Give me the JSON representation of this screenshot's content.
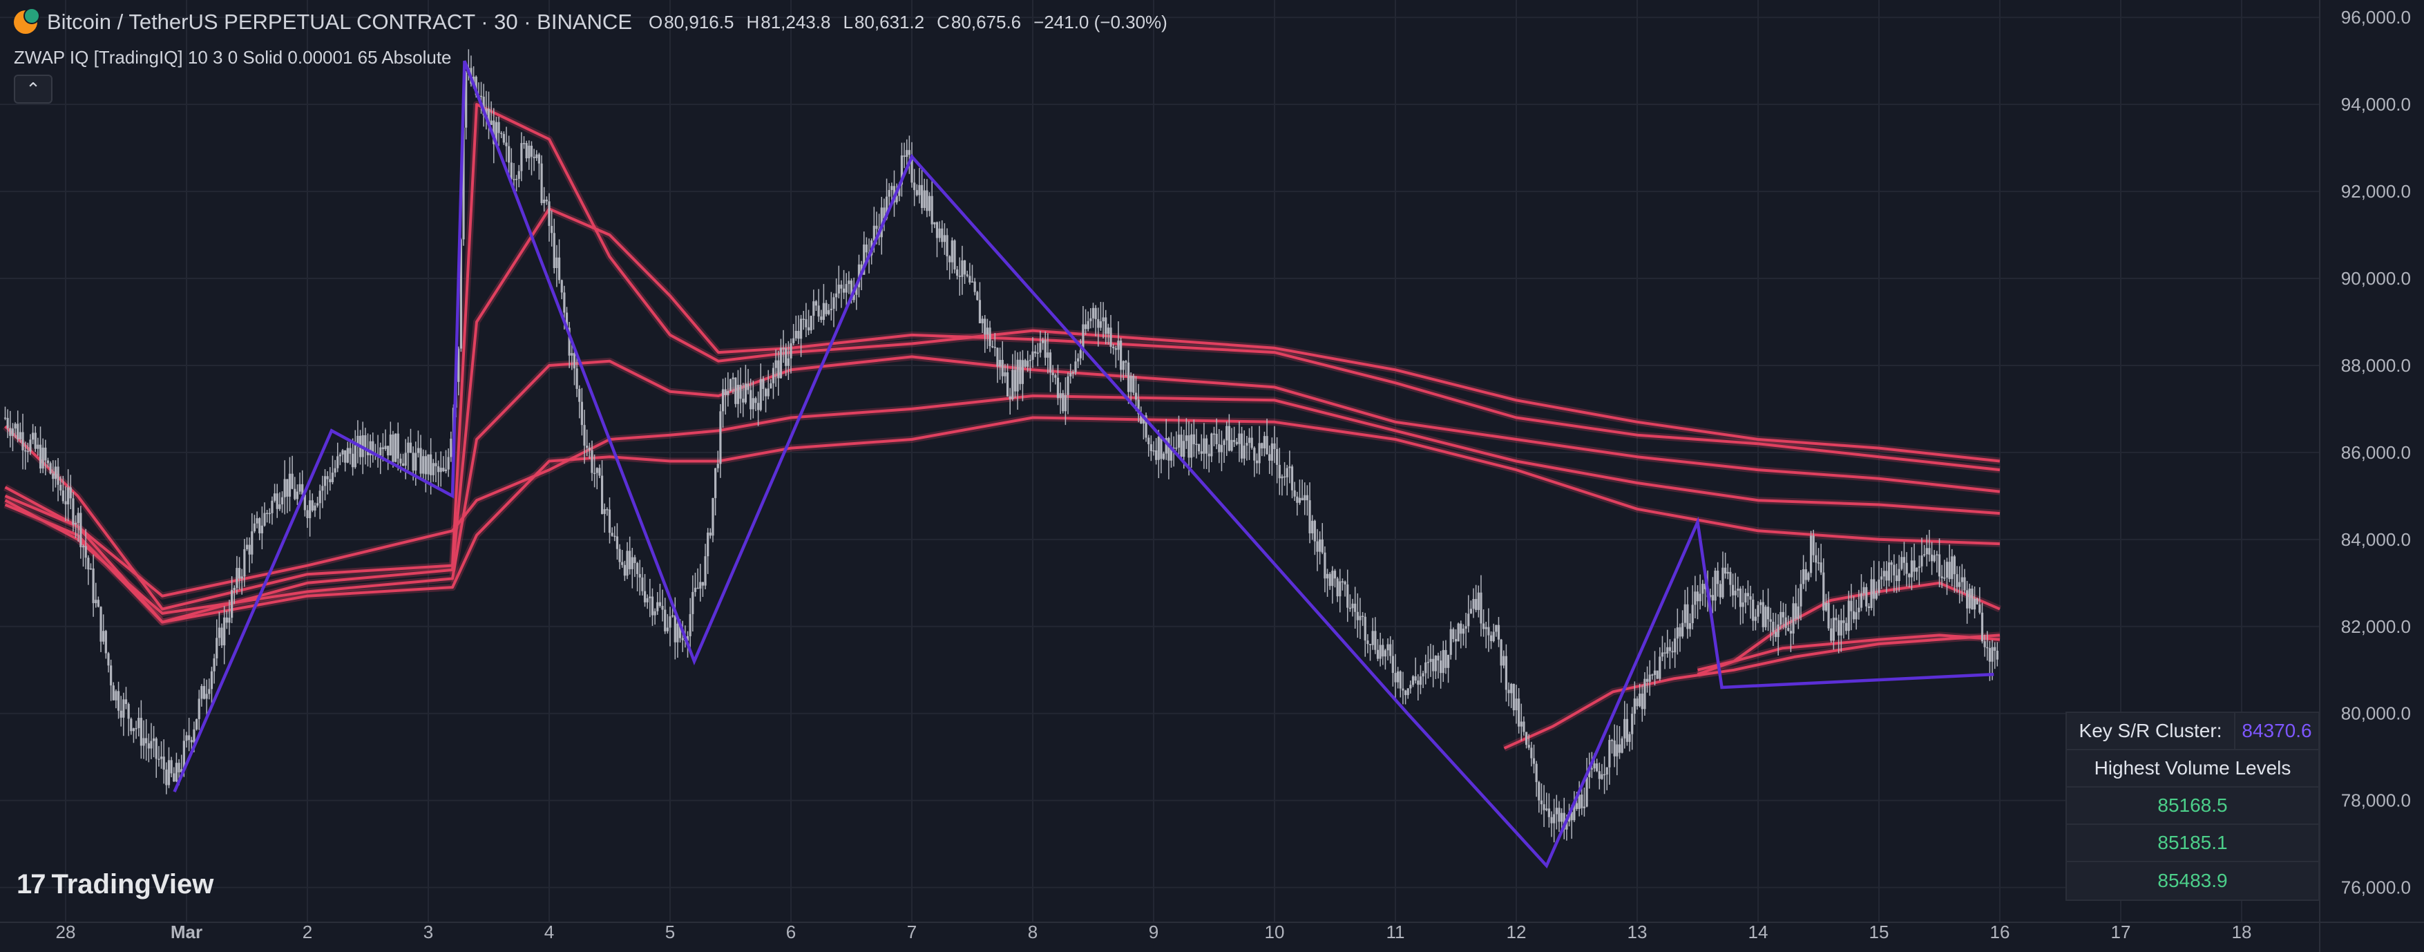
{
  "header": {
    "symbol_title": "Bitcoin / TetherUS PERPETUAL CONTRACT · 30 · BINANCE",
    "ohlc": [
      {
        "key": "O",
        "value": "80,916.5"
      },
      {
        "key": "H",
        "value": "81,243.8"
      },
      {
        "key": "L",
        "value": "80,631.2"
      },
      {
        "key": "C",
        "value": "80,675.6"
      }
    ],
    "change": "−241.0 (−0.30%)",
    "indicator": "ZWAP IQ [TradingIQ] 10 3 0 Solid 0.00001 65 Absolute",
    "collapse_icon": "chevron-up-icon"
  },
  "watermark": {
    "logo_icon": "tradingview-logo-icon",
    "logo_mark": "17",
    "text": "TradingView"
  },
  "sr_table": {
    "key_label": "Key S/R Cluster:",
    "key_value": "84370.6",
    "volume_header": "Highest Volume Levels",
    "levels": [
      "85168.5",
      "85185.1",
      "85483.9"
    ]
  },
  "colors": {
    "background": "#161a25",
    "candle": "#b2b5be",
    "bands": "#e0405f",
    "zigzag": "#5b2fd6",
    "grid": "#232733",
    "level_green": "#4cd08a",
    "cluster_value": "#7e57ff"
  },
  "chart_data": {
    "type": "line",
    "title": "Bitcoin / TetherUS PERPETUAL CONTRACT · 30 · BINANCE",
    "x_tick_labels": [
      "28",
      "Mar",
      "2",
      "3",
      "4",
      "5",
      "6",
      "7",
      "8",
      "9",
      "10",
      "11",
      "12",
      "13",
      "14",
      "15",
      "16",
      "17",
      "18"
    ],
    "x_range_days": [
      -0.5,
      18.6
    ],
    "ylim": [
      75200,
      96400
    ],
    "y_tick_values": [
      76000,
      78000,
      80000,
      82000,
      84000,
      86000,
      88000,
      90000,
      92000,
      94000,
      96000
    ],
    "y_tick_labels": [
      "76,000.0",
      "78,000.0",
      "80,000.0",
      "82,000.0",
      "84,000.0",
      "86,000.0",
      "88,000.0",
      "90,000.0",
      "92,000.0",
      "94,000.0",
      "96,000.0"
    ],
    "grid": true,
    "price_path": [
      [
        -0.5,
        86800
      ],
      [
        -0.2,
        85900
      ],
      [
        0.1,
        84500
      ],
      [
        0.4,
        80500
      ],
      [
        0.7,
        79200
      ],
      [
        0.9,
        78400
      ],
      [
        1.2,
        81000
      ],
      [
        1.5,
        83800
      ],
      [
        1.8,
        85300
      ],
      [
        2.0,
        84800
      ],
      [
        2.3,
        85900
      ],
      [
        2.6,
        86300
      ],
      [
        2.9,
        85800
      ],
      [
        3.15,
        85400
      ],
      [
        3.25,
        88500
      ],
      [
        3.3,
        94800
      ],
      [
        3.5,
        93600
      ],
      [
        3.7,
        92500
      ],
      [
        3.85,
        93200
      ],
      [
        4.0,
        91200
      ],
      [
        4.3,
        86300
      ],
      [
        4.55,
        83800
      ],
      [
        4.8,
        82800
      ],
      [
        5.1,
        81700
      ],
      [
        5.3,
        83500
      ],
      [
        5.45,
        87500
      ],
      [
        5.7,
        87200
      ],
      [
        5.95,
        88200
      ],
      [
        6.2,
        89300
      ],
      [
        6.5,
        89800
      ],
      [
        6.7,
        91100
      ],
      [
        6.95,
        92700
      ],
      [
        7.2,
        91300
      ],
      [
        7.5,
        89600
      ],
      [
        7.8,
        87500
      ],
      [
        8.05,
        88600
      ],
      [
        8.25,
        87200
      ],
      [
        8.5,
        89300
      ],
      [
        8.7,
        88500
      ],
      [
        8.95,
        86200
      ],
      [
        9.2,
        86100
      ],
      [
        9.6,
        86300
      ],
      [
        9.95,
        86000
      ],
      [
        10.2,
        85100
      ],
      [
        10.45,
        83200
      ],
      [
        10.8,
        81800
      ],
      [
        11.1,
        80600
      ],
      [
        11.4,
        81300
      ],
      [
        11.65,
        82700
      ],
      [
        11.85,
        81600
      ],
      [
        12.0,
        80000
      ],
      [
        12.2,
        78100
      ],
      [
        12.4,
        77300
      ],
      [
        12.6,
        78400
      ],
      [
        12.9,
        79600
      ],
      [
        13.2,
        81200
      ],
      [
        13.5,
        82700
      ],
      [
        13.75,
        83100
      ],
      [
        14.0,
        82300
      ],
      [
        14.25,
        81900
      ],
      [
        14.45,
        83900
      ],
      [
        14.6,
        81800
      ],
      [
        14.85,
        82600
      ],
      [
        15.1,
        83200
      ],
      [
        15.35,
        83600
      ],
      [
        15.6,
        83300
      ],
      [
        15.78,
        82500
      ],
      [
        15.92,
        81500
      ],
      [
        16.0,
        80700
      ]
    ],
    "zigzag": [
      [
        0.9,
        78200
      ],
      [
        2.2,
        86500
      ],
      [
        3.2,
        85000
      ],
      [
        3.3,
        95000
      ],
      [
        5.2,
        81200
      ],
      [
        7.0,
        92800
      ],
      [
        11.1,
        80000
      ],
      [
        12.25,
        76500
      ],
      [
        13.5,
        84400
      ],
      [
        13.7,
        80600
      ],
      [
        15.95,
        80900
      ]
    ],
    "series": [
      {
        "values": [
          [
            -0.5,
            85200
          ],
          [
            0.1,
            84300
          ],
          [
            0.8,
            82100
          ],
          [
            2.0,
            83000
          ],
          [
            3.2,
            83300
          ],
          [
            3.4,
            89000
          ],
          [
            4.0,
            91600
          ],
          [
            4.5,
            91000
          ],
          [
            5.0,
            89600
          ],
          [
            5.4,
            88300
          ],
          [
            6.0,
            88400
          ],
          [
            7.0,
            88700
          ],
          [
            8.0,
            88600
          ],
          [
            10.0,
            88300
          ],
          [
            11.0,
            87600
          ],
          [
            12.0,
            86800
          ],
          [
            13.0,
            86400
          ],
          [
            14.0,
            86200
          ],
          [
            15.0,
            85900
          ],
          [
            16.0,
            85600
          ]
        ]
      },
      {
        "values": [
          [
            -0.5,
            84900
          ],
          [
            0.1,
            84000
          ],
          [
            0.8,
            82300
          ],
          [
            2.0,
            82800
          ],
          [
            3.2,
            83100
          ],
          [
            3.4,
            86300
          ],
          [
            4.0,
            88000
          ],
          [
            4.5,
            88100
          ],
          [
            5.0,
            87400
          ],
          [
            5.4,
            87300
          ],
          [
            6.0,
            87900
          ],
          [
            7.0,
            88200
          ],
          [
            8.0,
            87900
          ],
          [
            10.0,
            87500
          ],
          [
            11.0,
            86700
          ],
          [
            12.0,
            86300
          ],
          [
            13.0,
            85900
          ],
          [
            14.0,
            85600
          ],
          [
            15.0,
            85400
          ],
          [
            16.0,
            85100
          ]
        ]
      },
      {
        "values": [
          [
            -0.5,
            85000
          ],
          [
            0.1,
            84300
          ],
          [
            0.8,
            82700
          ],
          [
            2.0,
            83400
          ],
          [
            3.2,
            84200
          ],
          [
            3.4,
            84900
          ],
          [
            4.0,
            85600
          ],
          [
            4.5,
            86300
          ],
          [
            5.0,
            86400
          ],
          [
            5.4,
            86500
          ],
          [
            6.0,
            86800
          ],
          [
            7.0,
            87000
          ],
          [
            8.0,
            87300
          ],
          [
            10.0,
            87200
          ],
          [
            11.0,
            86500
          ],
          [
            12.0,
            85800
          ],
          [
            13.0,
            85300
          ],
          [
            14.0,
            84900
          ],
          [
            15.0,
            84800
          ],
          [
            16.0,
            84600
          ]
        ]
      },
      {
        "values": [
          [
            -0.5,
            84800
          ],
          [
            0.1,
            84100
          ],
          [
            0.8,
            82100
          ],
          [
            2.0,
            82700
          ],
          [
            3.2,
            82900
          ],
          [
            3.4,
            84100
          ],
          [
            4.0,
            85800
          ],
          [
            4.5,
            85900
          ],
          [
            5.0,
            85800
          ],
          [
            5.4,
            85800
          ],
          [
            6.0,
            86100
          ],
          [
            7.0,
            86300
          ],
          [
            8.0,
            86800
          ],
          [
            10.0,
            86700
          ],
          [
            11.0,
            86300
          ],
          [
            12.0,
            85600
          ],
          [
            13.0,
            84700
          ],
          [
            14.0,
            84200
          ],
          [
            15.0,
            84000
          ],
          [
            16.0,
            83900
          ]
        ]
      },
      {
        "values": [
          [
            -0.5,
            86600
          ],
          [
            0.1,
            85000
          ],
          [
            0.8,
            82400
          ],
          [
            2.0,
            83200
          ],
          [
            3.2,
            83400
          ],
          [
            3.4,
            94000
          ],
          [
            4.0,
            93200
          ],
          [
            4.5,
            90500
          ],
          [
            5.0,
            88700
          ],
          [
            5.4,
            88100
          ],
          [
            6.0,
            88300
          ],
          [
            7.0,
            88500
          ],
          [
            8.0,
            88800
          ],
          [
            10.0,
            88400
          ],
          [
            11.0,
            87900
          ],
          [
            12.0,
            87200
          ],
          [
            13.0,
            86700
          ],
          [
            14.0,
            86300
          ],
          [
            15.0,
            86100
          ],
          [
            16.0,
            85800
          ]
        ]
      },
      {
        "values": [
          [
            13.5,
            81000
          ],
          [
            13.8,
            81200
          ],
          [
            14.2,
            82000
          ],
          [
            14.6,
            82600
          ],
          [
            15.0,
            82800
          ],
          [
            15.5,
            83000
          ],
          [
            16.0,
            82400
          ]
        ]
      },
      {
        "values": [
          [
            13.5,
            80900
          ],
          [
            13.8,
            81200
          ],
          [
            14.2,
            81500
          ],
          [
            14.6,
            81600
          ],
          [
            15.0,
            81700
          ],
          [
            15.5,
            81800
          ],
          [
            16.0,
            81700
          ]
        ]
      },
      {
        "values": [
          [
            11.9,
            79200
          ],
          [
            12.3,
            79700
          ],
          [
            12.8,
            80500
          ],
          [
            13.3,
            80800
          ],
          [
            13.8,
            81000
          ],
          [
            14.3,
            81300
          ],
          [
            15.0,
            81600
          ],
          [
            16.0,
            81800
          ]
        ]
      }
    ]
  }
}
